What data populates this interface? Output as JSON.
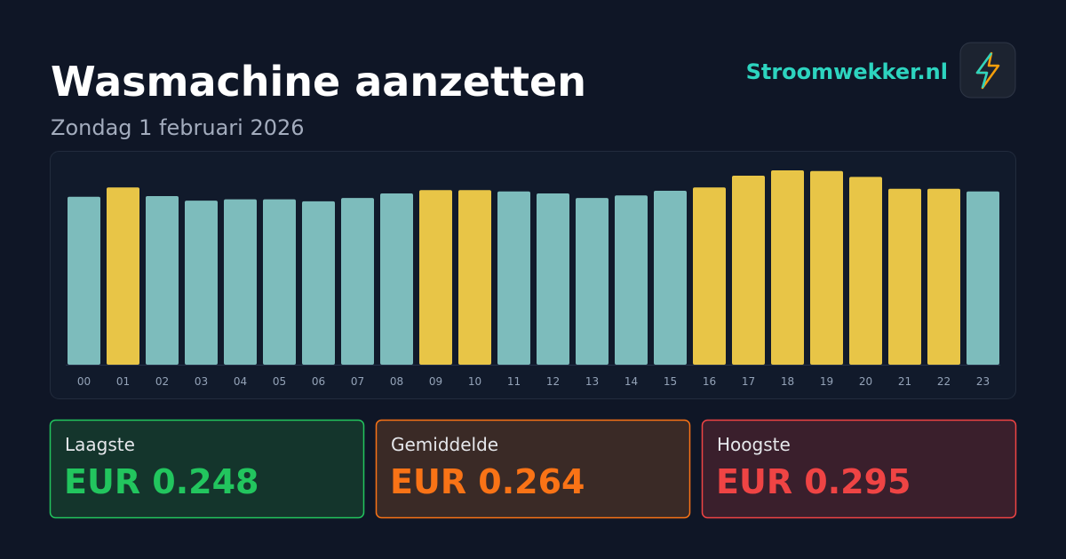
{
  "chart_data": {
    "type": "bar",
    "title": "Wasmachine aanzetten",
    "subtitle": "Zondag 1 februari 2026",
    "categories": [
      "00",
      "01",
      "02",
      "03",
      "04",
      "05",
      "06",
      "07",
      "08",
      "09",
      "10",
      "11",
      "12",
      "13",
      "14",
      "15",
      "16",
      "17",
      "18",
      "19",
      "20",
      "21",
      "22",
      "23"
    ],
    "values": [
      0.255,
      0.269,
      0.256,
      0.249,
      0.251,
      0.251,
      0.248,
      0.253,
      0.26,
      0.265,
      0.265,
      0.263,
      0.26,
      0.253,
      0.257,
      0.264,
      0.269,
      0.287,
      0.295,
      0.294,
      0.285,
      0.267,
      0.267,
      0.263
    ],
    "colors": [
      "#7dbcbc",
      "#e8c547",
      "#7dbcbc",
      "#7dbcbc",
      "#7dbcbc",
      "#7dbcbc",
      "#7dbcbc",
      "#7dbcbc",
      "#7dbcbc",
      "#e8c547",
      "#e8c547",
      "#7dbcbc",
      "#7dbcbc",
      "#7dbcbc",
      "#7dbcbc",
      "#7dbcbc",
      "#e8c547",
      "#e8c547",
      "#e8c547",
      "#e8c547",
      "#e8c547",
      "#e8c547",
      "#e8c547",
      "#7dbcbc"
    ]
  },
  "brand": "Stroomwekker.nl",
  "stats": [
    {
      "label": "Laagste",
      "value": "EUR 0.248"
    },
    {
      "label": "Gemiddelde",
      "value": "EUR 0.264"
    },
    {
      "label": "Hoogste",
      "value": "EUR 0.295"
    }
  ]
}
